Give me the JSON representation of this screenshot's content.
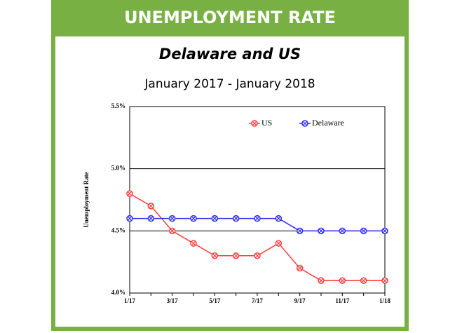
{
  "header": "UNEMPLOYMENT RATE",
  "chart_data": {
    "type": "line",
    "title": "Delaware and US",
    "subtitle": "January 2017 - January 2018",
    "y_label": "Unemployment Rate",
    "categories": [
      "1/17",
      null,
      "3/17",
      null,
      "5/17",
      null,
      "7/17",
      null,
      "9/17",
      null,
      "11/17",
      null,
      "1/18"
    ],
    "series": [
      {
        "name": "US",
        "color": "#ff3b3b",
        "values": [
          4.8,
          4.7,
          4.5,
          4.4,
          4.3,
          4.3,
          4.3,
          4.4,
          4.2,
          4.1,
          4.1,
          4.1,
          4.1
        ]
      },
      {
        "name": "Delaware",
        "color": "#2b2bff",
        "values": [
          4.6,
          4.6,
          4.6,
          4.6,
          4.6,
          4.6,
          4.6,
          4.6,
          4.5,
          4.5,
          4.5,
          4.5,
          4.5
        ]
      }
    ],
    "ylim": [
      4.0,
      5.5
    ],
    "yticks": [
      {
        "value": 4.0,
        "label": "4.0%"
      },
      {
        "value": 4.5,
        "label": "4.5%"
      },
      {
        "value": 5.0,
        "label": "5.0%"
      },
      {
        "value": 5.5,
        "label": "5.5%"
      }
    ],
    "grid": true,
    "legend": "top-right"
  }
}
